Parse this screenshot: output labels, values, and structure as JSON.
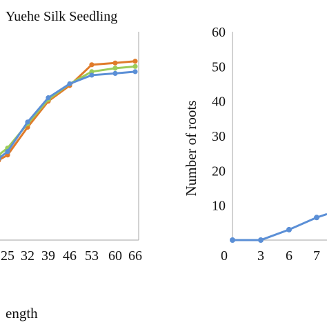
{
  "chart_data": [
    {
      "type": "line",
      "title": "Yuehe Silk Seedling",
      "xlabel": "ength",
      "ylabel": "",
      "categories": [
        "25",
        "32",
        "39",
        "46",
        "53",
        "60",
        "66"
      ],
      "ylim": [
        0,
        60
      ],
      "grid": false,
      "series": [
        {
          "color": "#e07b2a",
          "values": [
            24.5,
            32.5,
            40.0,
            44.5,
            50.5,
            51.0,
            51.5
          ],
          "points": [
            {
              "x": "24",
              "y": 23.0
            },
            {
              "x": "25",
              "y": 24.5
            },
            {
              "x": "32",
              "y": 32.5
            },
            {
              "x": "39",
              "y": 40.0
            },
            {
              "x": "46",
              "y": 44.5
            },
            {
              "x": "53",
              "y": 50.5
            },
            {
              "x": "60",
              "y": 51.0
            },
            {
              "x": "66",
              "y": 51.5
            }
          ]
        },
        {
          "color": "#9ccc5a",
          "values": [
            26.5,
            33.5,
            40.5,
            45.0,
            48.5,
            49.5,
            50.0
          ],
          "points": [
            {
              "x": "24",
              "y": 24.5
            },
            {
              "x": "25",
              "y": 26.5
            },
            {
              "x": "32",
              "y": 33.5
            },
            {
              "x": "39",
              "y": 40.5
            },
            {
              "x": "46",
              "y": 45.0
            },
            {
              "x": "53",
              "y": 48.5
            },
            {
              "x": "60",
              "y": 49.5
            },
            {
              "x": "66",
              "y": 50.0
            }
          ]
        },
        {
          "color": "#5b8fd6",
          "values": [
            25.5,
            34.0,
            41.0,
            45.0,
            47.5,
            48.0,
            48.5
          ],
          "points": [
            {
              "x": "24",
              "y": 23.5
            },
            {
              "x": "25",
              "y": 25.5
            },
            {
              "x": "32",
              "y": 34.0
            },
            {
              "x": "39",
              "y": 41.0
            },
            {
              "x": "46",
              "y": 45.0
            },
            {
              "x": "53",
              "y": 47.5
            },
            {
              "x": "60",
              "y": 48.0
            },
            {
              "x": "66",
              "y": 48.5
            }
          ]
        }
      ]
    },
    {
      "type": "line",
      "title": "",
      "xlabel": "",
      "ylabel": "Number of roots",
      "categories": [
        "0",
        "3",
        "6",
        "7"
      ],
      "y_ticks": [
        "10",
        "20",
        "30",
        "40",
        "50",
        "60"
      ],
      "ylim": [
        0,
        60
      ],
      "grid": false,
      "series": [
        {
          "color": "#5b8fd6",
          "values": [
            0,
            0,
            3,
            6.5
          ],
          "points": [
            {
              "x": "0",
              "y": 0
            },
            {
              "x": "3",
              "y": 0
            },
            {
              "x": "6",
              "y": 3
            },
            {
              "x": "7",
              "y": 6.5
            },
            {
              "x": "7.5",
              "y": 7.5
            }
          ]
        }
      ]
    }
  ]
}
